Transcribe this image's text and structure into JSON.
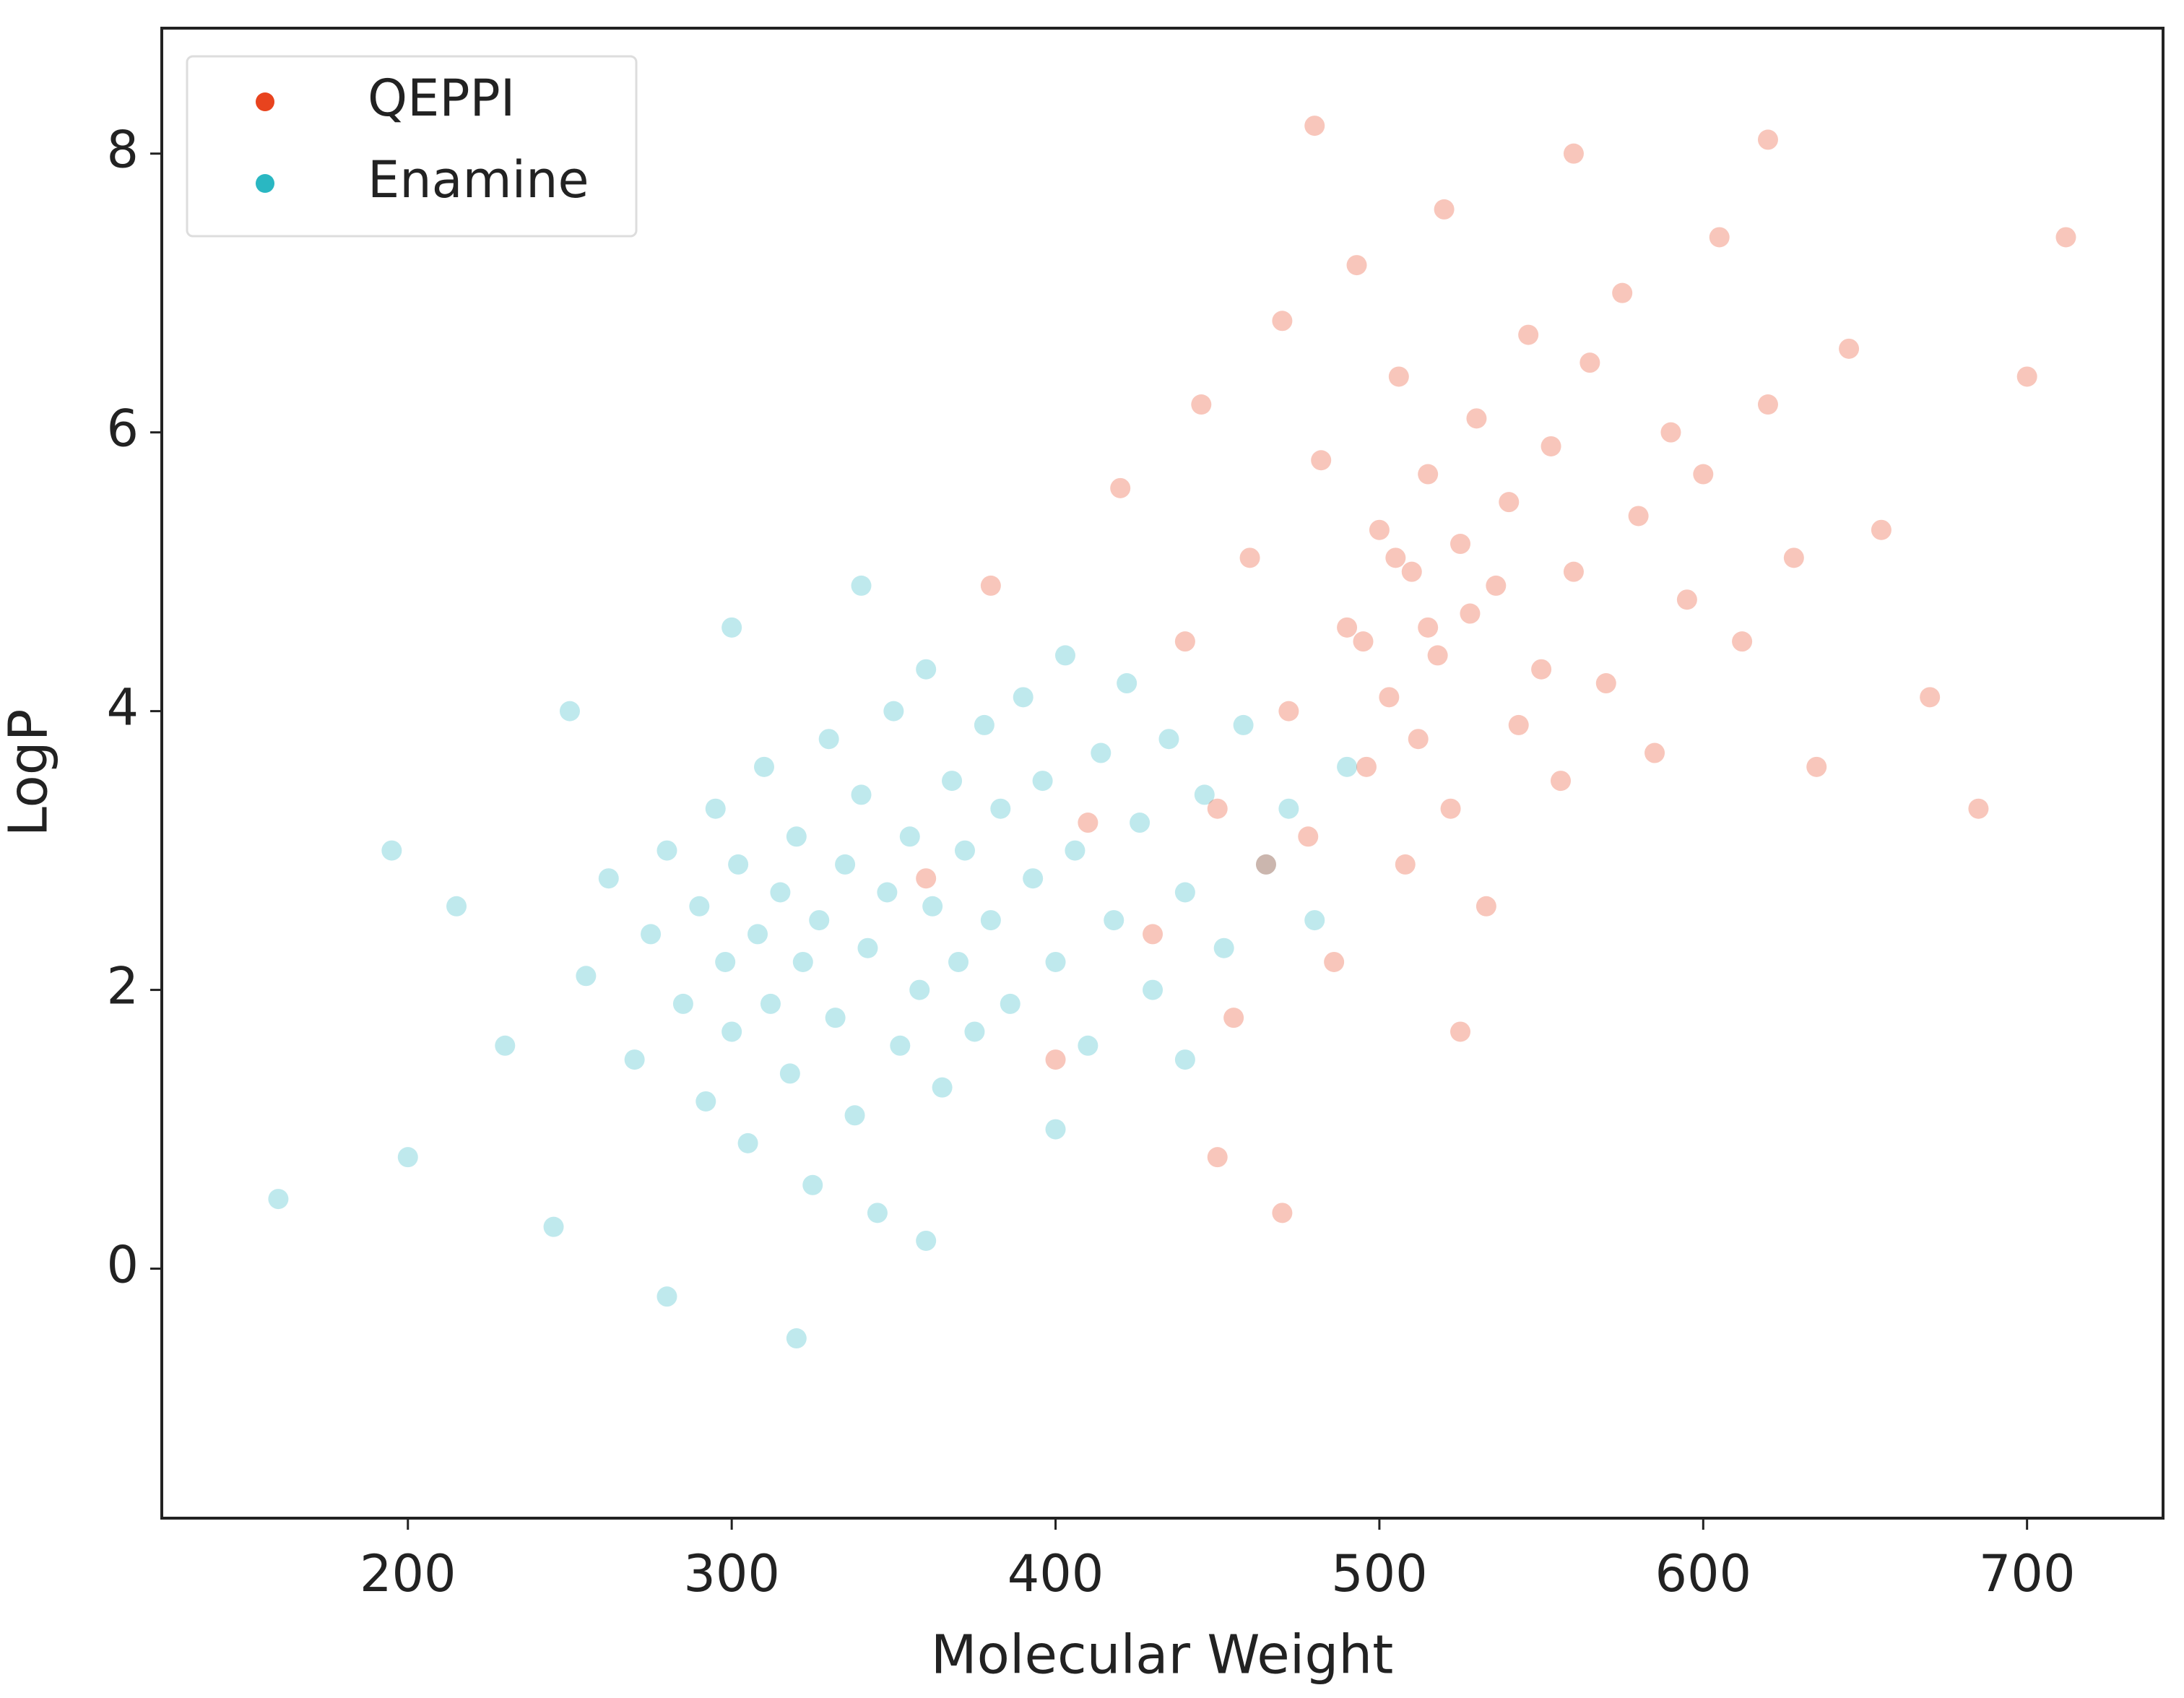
{
  "chart_data": {
    "type": "scatter",
    "x_label": "Molecular Weight",
    "y_label": "LogP",
    "xlim": [
      124,
      742
    ],
    "ylim": [
      -1.79,
      8.9
    ],
    "xticks": [
      200,
      300,
      400,
      500,
      600,
      700
    ],
    "yticks": [
      0,
      2,
      4,
      6,
      8
    ],
    "legend": "upper left",
    "alpha": 0.3,
    "series": [
      {
        "name": "Enamine",
        "color": "#2ab7c2",
        "x": [
          255,
          262,
          270,
          275,
          280,
          285,
          290,
          292,
          295,
          298,
          300,
          302,
          305,
          308,
          310,
          312,
          315,
          318,
          320,
          322,
          325,
          327,
          330,
          332,
          335,
          338,
          340,
          342,
          345,
          348,
          350,
          352,
          355,
          358,
          360,
          362,
          365,
          368,
          370,
          372,
          375,
          378,
          380,
          383,
          386,
          390,
          393,
          396,
          400,
          403,
          406,
          410,
          414,
          418,
          422,
          426,
          430,
          435,
          440,
          446,
          452,
          458,
          465,
          472,
          480,
          490,
          230,
          215,
          200,
          245,
          280,
          320,
          360,
          400,
          440,
          195,
          160,
          250,
          300,
          340
        ],
        "y": [
          2.1,
          2.8,
          1.5,
          2.4,
          3.0,
          1.9,
          2.6,
          1.2,
          3.3,
          2.2,
          1.7,
          2.9,
          0.9,
          2.4,
          3.6,
          1.9,
          2.7,
          1.4,
          3.1,
          2.2,
          0.6,
          2.5,
          3.8,
          1.8,
          2.9,
          1.1,
          3.4,
          2.3,
          0.4,
          2.7,
          4.0,
          1.6,
          3.1,
          2.0,
          4.3,
          2.6,
          1.3,
          3.5,
          2.2,
          3.0,
          1.7,
          3.9,
          2.5,
          3.3,
          1.9,
          4.1,
          2.8,
          3.5,
          2.2,
          4.4,
          3.0,
          1.6,
          3.7,
          2.5,
          4.2,
          3.2,
          2.0,
          3.8,
          2.7,
          3.4,
          2.3,
          3.9,
          2.9,
          3.3,
          2.5,
          3.6,
          1.6,
          2.6,
          0.8,
          0.3,
          -0.2,
          -0.5,
          0.2,
          1.0,
          1.5,
          3.0,
          0.5,
          4.0,
          4.6,
          4.9
        ]
      },
      {
        "name": "QEPPI",
        "color": "#e8431e",
        "x": [
          400,
          410,
          420,
          430,
          440,
          445,
          450,
          455,
          460,
          465,
          470,
          472,
          478,
          482,
          486,
          490,
          493,
          496,
          500,
          503,
          506,
          508,
          510,
          512,
          515,
          518,
          520,
          522,
          525,
          528,
          530,
          533,
          536,
          540,
          543,
          546,
          550,
          553,
          556,
          560,
          565,
          570,
          575,
          580,
          585,
          590,
          595,
          600,
          605,
          612,
          620,
          628,
          635,
          645,
          655,
          670,
          685,
          700,
          712,
          480,
          525,
          560,
          450,
          380,
          360,
          470,
          620,
          515,
          505,
          495
        ],
        "y": [
          1.5,
          3.2,
          5.6,
          2.4,
          4.5,
          6.2,
          3.3,
          1.8,
          5.1,
          2.9,
          6.8,
          4.0,
          3.1,
          5.8,
          2.2,
          4.6,
          7.2,
          3.6,
          5.3,
          4.1,
          6.4,
          2.9,
          5.0,
          3.8,
          5.7,
          4.4,
          7.6,
          3.3,
          5.2,
          4.7,
          6.1,
          2.6,
          4.9,
          5.5,
          3.9,
          6.7,
          4.3,
          5.9,
          3.5,
          5.0,
          6.5,
          4.2,
          7.0,
          5.4,
          3.7,
          6.0,
          4.8,
          5.7,
          7.4,
          4.5,
          6.2,
          5.1,
          3.6,
          6.6,
          5.3,
          4.1,
          3.3,
          6.4,
          7.4,
          8.2,
          1.7,
          8.0,
          0.8,
          4.9,
          2.8,
          0.4,
          8.1,
          4.6,
          5.1,
          4.5
        ]
      }
    ]
  }
}
